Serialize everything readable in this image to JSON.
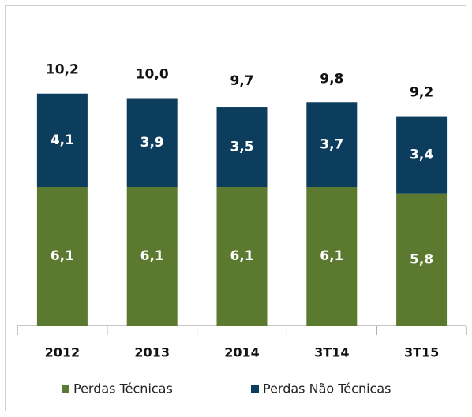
{
  "chart_data": {
    "type": "stacked-bar",
    "categories": [
      "2012",
      "2013",
      "2014",
      "3T14",
      "3T15"
    ],
    "series": [
      {
        "name": "Perdas Técnicas",
        "color": "#5b7a2f",
        "values": [
          6.1,
          6.1,
          6.1,
          6.1,
          5.8
        ],
        "value_labels": [
          "6,1",
          "6,1",
          "6,1",
          "6,1",
          "5,8"
        ]
      },
      {
        "name": "Perdas Não Técnicas",
        "color": "#0c3d5c",
        "values": [
          4.1,
          3.9,
          3.5,
          3.7,
          3.4
        ],
        "value_labels": [
          "4,1",
          "3,9",
          "3,5",
          "3,7",
          "3,4"
        ]
      }
    ],
    "totals": {
      "values": [
        10.2,
        10.0,
        9.7,
        9.8,
        9.2
      ],
      "value_labels": [
        "10,2",
        "10,0",
        "9,7",
        "9,8",
        "9,2"
      ]
    }
  }
}
